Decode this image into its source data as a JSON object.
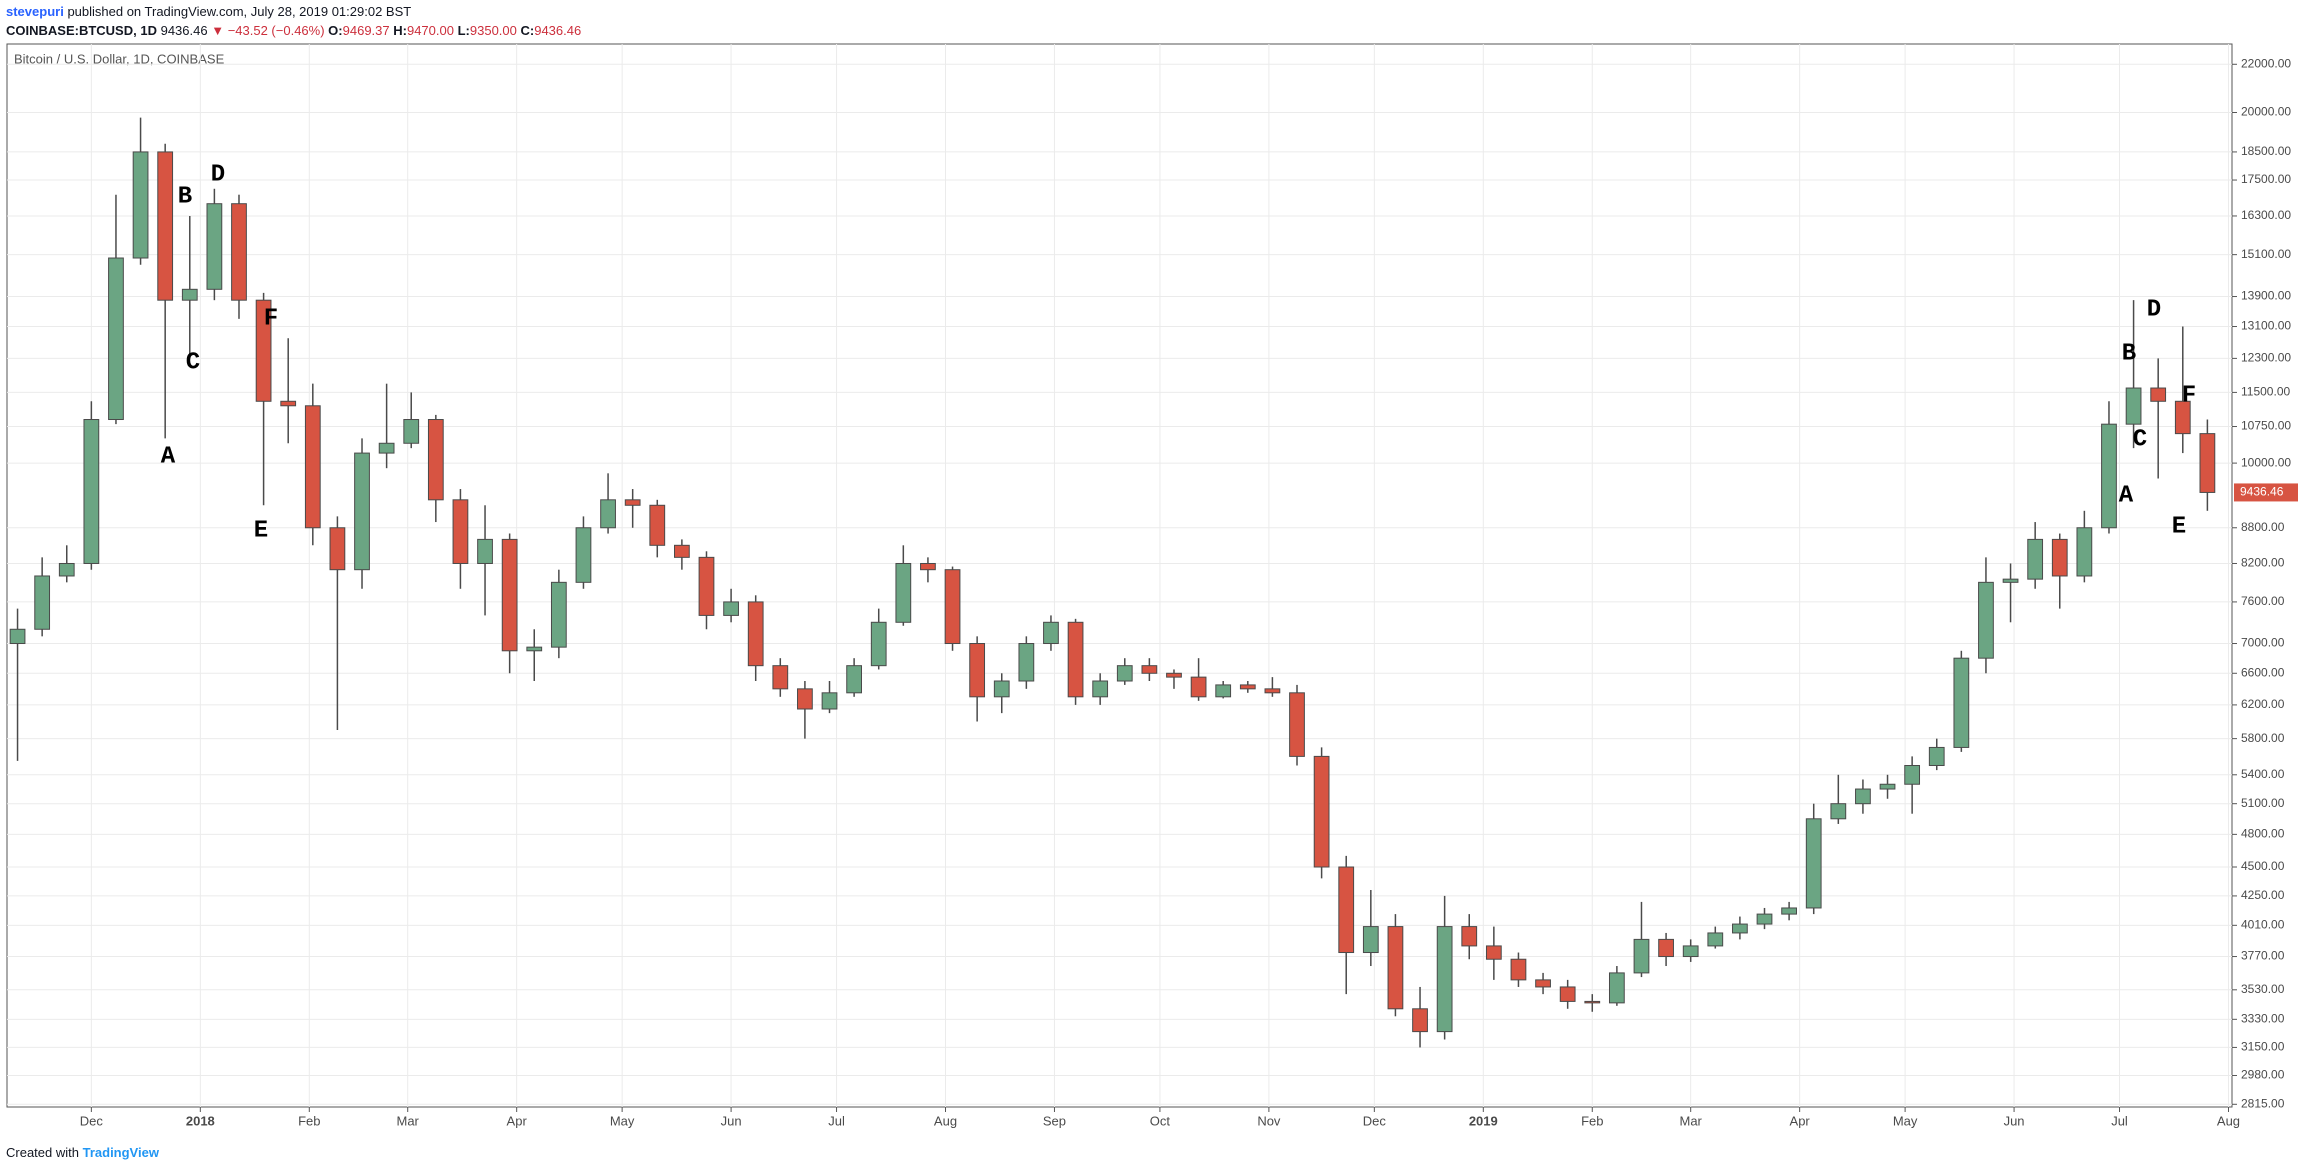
{
  "header": {
    "author": "stevepuri",
    "published": "published on TradingView.com, July 28, 2019 01:29:02 BST",
    "symbol": "COINBASE:BTCUSD, 1D",
    "last": "9436.46",
    "change": "▼ −43.52 (−0.46%)",
    "o_label": "O:",
    "o": "9469.37",
    "h_label": "H:",
    "h": "9470.00",
    "l_label": "L:",
    "l": "9350.00",
    "c_label": "C:",
    "c": "9436.46"
  },
  "footer": {
    "created": "Created with",
    "brand": "TradingView"
  },
  "chart_data": {
    "type": "candlestick",
    "title": "Bitcoin / U.S. Dollar, 1D, COINBASE",
    "x": [
      -52,
      -45,
      -38,
      -31,
      -24,
      -17,
      -10,
      -3,
      4,
      11,
      18,
      25,
      32,
      39,
      46,
      53,
      60,
      67,
      74,
      81,
      88,
      95,
      102,
      109,
      116,
      123,
      130,
      137,
      144,
      151,
      158,
      165,
      172,
      179,
      186,
      193,
      200,
      207,
      214,
      221,
      228,
      235,
      242,
      249,
      256,
      263,
      270,
      277,
      284,
      291,
      298,
      305,
      312,
      319,
      326,
      333,
      340,
      347,
      354,
      361,
      368,
      375,
      382,
      389,
      396,
      403,
      410,
      417,
      424,
      431,
      438,
      445,
      452,
      459,
      466,
      473,
      480,
      487,
      494,
      501,
      508,
      515,
      522,
      529,
      536,
      543,
      550,
      557,
      564,
      571
    ],
    "open": [
      7000,
      7200,
      8000,
      8200,
      10900,
      15000,
      18500,
      13800,
      14100,
      16700,
      13800,
      11300,
      11200,
      8800,
      8100,
      10200,
      10400,
      10900,
      9300,
      8200,
      8600,
      6900,
      6950,
      7900,
      8800,
      9300,
      9200,
      8500,
      8300,
      7400,
      7600,
      6700,
      6400,
      6150,
      6350,
      6700,
      7300,
      8200,
      8100,
      7000,
      6300,
      6500,
      7000,
      7300,
      6300,
      6500,
      6700,
      6600,
      6550,
      6300,
      6450,
      6400,
      6350,
      5600,
      4500,
      3800,
      4000,
      3400,
      3250,
      4000,
      3850,
      3750,
      3600,
      3550,
      3450,
      3440,
      3650,
      3900,
      3770,
      3850,
      3950,
      4020,
      4100,
      4150,
      4950,
      5100,
      5250,
      5300,
      5500,
      5700,
      6800,
      7900,
      7950,
      8600,
      8000,
      8800,
      10800,
      11600,
      11300,
      10600
    ],
    "high": [
      7500,
      8300,
      8500,
      11300,
      17000,
      19800,
      18800,
      16300,
      17200,
      17000,
      14000,
      12800,
      11700,
      9000,
      10500,
      11700,
      11500,
      11000,
      9500,
      9200,
      8700,
      7200,
      8100,
      9000,
      9800,
      9500,
      9300,
      8600,
      8400,
      7800,
      7700,
      6800,
      6500,
      6500,
      6800,
      7500,
      8500,
      8300,
      8150,
      7100,
      6600,
      7100,
      7400,
      7350,
      6600,
      6800,
      6800,
      6650,
      6800,
      6500,
      6500,
      6550,
      6450,
      5700,
      4600,
      4300,
      4100,
      3550,
      4250,
      4100,
      4000,
      3800,
      3650,
      3600,
      3500,
      3700,
      4200,
      3950,
      3900,
      4000,
      4080,
      4150,
      4200,
      5100,
      5400,
      5350,
      5400,
      5600,
      5800,
      6900,
      8300,
      8200,
      8900,
      8700,
      9100,
      11300,
      13800,
      12300,
      13100,
      10900
    ],
    "low": [
      5550,
      7100,
      7900,
      8100,
      10800,
      14800,
      10500,
      12300,
      13800,
      13300,
      9200,
      10400,
      8500,
      5900,
      7800,
      9900,
      10300,
      8900,
      7800,
      7400,
      6600,
      6500,
      6800,
      7800,
      8700,
      8800,
      8300,
      8100,
      7200,
      7300,
      6500,
      6300,
      5800,
      6100,
      6300,
      6650,
      7250,
      7900,
      6900,
      6000,
      6100,
      6400,
      6900,
      6200,
      6200,
      6450,
      6500,
      6400,
      6250,
      6280,
      6350,
      6300,
      5500,
      4400,
      3500,
      3700,
      3350,
      3150,
      3200,
      3750,
      3600,
      3550,
      3500,
      3400,
      3380,
      3420,
      3620,
      3700,
      3730,
      3830,
      3900,
      3980,
      4050,
      4100,
      4900,
      5000,
      5150,
      5000,
      5450,
      5650,
      6600,
      7300,
      7800,
      7500,
      7900,
      8700,
      10300,
      9700,
      10200,
      9100
    ],
    "close": [
      7200,
      8000,
      8200,
      10900,
      15000,
      18500,
      13800,
      14100,
      16700,
      13800,
      11300,
      11200,
      8800,
      8100,
      10200,
      10400,
      10900,
      9300,
      8200,
      8600,
      6900,
      6950,
      7900,
      8800,
      9300,
      9200,
      8500,
      8300,
      7400,
      7600,
      6700,
      6400,
      6150,
      6350,
      6700,
      7300,
      8200,
      8100,
      7000,
      6300,
      6500,
      7000,
      7300,
      6300,
      6500,
      6700,
      6600,
      6550,
      6300,
      6450,
      6400,
      6350,
      5600,
      4500,
      3800,
      4000,
      3400,
      3250,
      4000,
      3850,
      3750,
      3600,
      3550,
      3450,
      3440,
      3650,
      3900,
      3770,
      3850,
      3950,
      4020,
      4100,
      4150,
      4950,
      5100,
      5250,
      5300,
      5500,
      5700,
      6800,
      7900,
      7950,
      8600,
      8000,
      8800,
      10800,
      11600,
      11300,
      10600,
      9436.46
    ],
    "up_color": "#6ba583",
    "down_color": "#d75442",
    "wick_color": "#4a4a4a",
    "xlim": [
      -55,
      578
    ],
    "xticks": [
      {
        "value": -31,
        "label": "Dec"
      },
      {
        "value": 0,
        "label": "2018"
      },
      {
        "value": 31,
        "label": "Feb"
      },
      {
        "value": 59,
        "label": "Mar"
      },
      {
        "value": 90,
        "label": "Apr"
      },
      {
        "value": 120,
        "label": "May"
      },
      {
        "value": 151,
        "label": "Jun"
      },
      {
        "value": 181,
        "label": "Jul"
      },
      {
        "value": 212,
        "label": "Aug"
      },
      {
        "value": 243,
        "label": "Sep"
      },
      {
        "value": 273,
        "label": "Oct"
      },
      {
        "value": 304,
        "label": "Nov"
      },
      {
        "value": 334,
        "label": "Dec"
      },
      {
        "value": 365,
        "label": "2019"
      },
      {
        "value": 396,
        "label": "Feb"
      },
      {
        "value": 424,
        "label": "Mar"
      },
      {
        "value": 455,
        "label": "Apr"
      },
      {
        "value": 485,
        "label": "May"
      },
      {
        "value": 516,
        "label": "Jun"
      },
      {
        "value": 546,
        "label": "Jul"
      },
      {
        "value": 577,
        "label": "Aug"
      }
    ],
    "ylim": [
      2800,
      22900
    ],
    "log_scale": true,
    "grid": true,
    "yticks": [
      {
        "value": 2815,
        "label": "2815.00"
      },
      {
        "value": 2980,
        "label": "2980.00"
      },
      {
        "value": 3150,
        "label": "3150.00"
      },
      {
        "value": 3330,
        "label": "3330.00"
      },
      {
        "value": 3530,
        "label": "3530.00"
      },
      {
        "value": 3770,
        "label": "3770.00"
      },
      {
        "value": 4010,
        "label": "4010.00"
      },
      {
        "value": 4250,
        "label": "4250.00"
      },
      {
        "value": 4500,
        "label": "4500.00"
      },
      {
        "value": 4800,
        "label": "4800.00"
      },
      {
        "value": 5100,
        "label": "5100.00"
      },
      {
        "value": 5400,
        "label": "5400.00"
      },
      {
        "value": 5800,
        "label": "5800.00"
      },
      {
        "value": 6200,
        "label": "6200.00"
      },
      {
        "value": 6600,
        "label": "6600.00"
      },
      {
        "value": 7000,
        "label": "7000.00"
      },
      {
        "value": 7600,
        "label": "7600.00"
      },
      {
        "value": 8200,
        "label": "8200.00"
      },
      {
        "value": 8800,
        "label": "8800.00"
      },
      {
        "value": 10000,
        "label": "10000.00"
      },
      {
        "value": 10750,
        "label": "10750.00"
      },
      {
        "value": 11500,
        "label": "11500.00"
      },
      {
        "value": 12300,
        "label": "12300.00"
      },
      {
        "value": 13100,
        "label": "13100.00"
      },
      {
        "value": 13900,
        "label": "13900.00"
      },
      {
        "value": 15100,
        "label": "15100.00"
      },
      {
        "value": 16300,
        "label": "16300.00"
      },
      {
        "value": 17500,
        "label": "17500.00"
      },
      {
        "value": 18500,
        "label": "18500.00"
      },
      {
        "value": 20000,
        "label": "20000.00"
      },
      {
        "value": 22000,
        "label": "22000.00"
      }
    ],
    "annotations": [
      "A",
      "B",
      "C",
      "D",
      "E",
      "F",
      "A",
      "B",
      "C",
      "D",
      "E",
      "F"
    ]
  }
}
